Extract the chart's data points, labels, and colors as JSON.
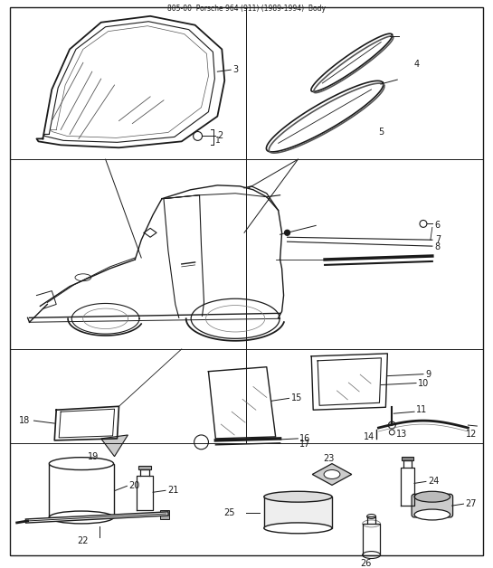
{
  "title": "805-00  Porsche 964 (911) (1989-1994)  Body",
  "bg": "#ffffff",
  "lc": "#1a1a1a",
  "fig_width": 5.45,
  "fig_height": 6.28,
  "dpi": 100,
  "hlines": [
    0.178,
    0.495,
    0.685
  ],
  "vline": 0.495,
  "label_fs": 7
}
